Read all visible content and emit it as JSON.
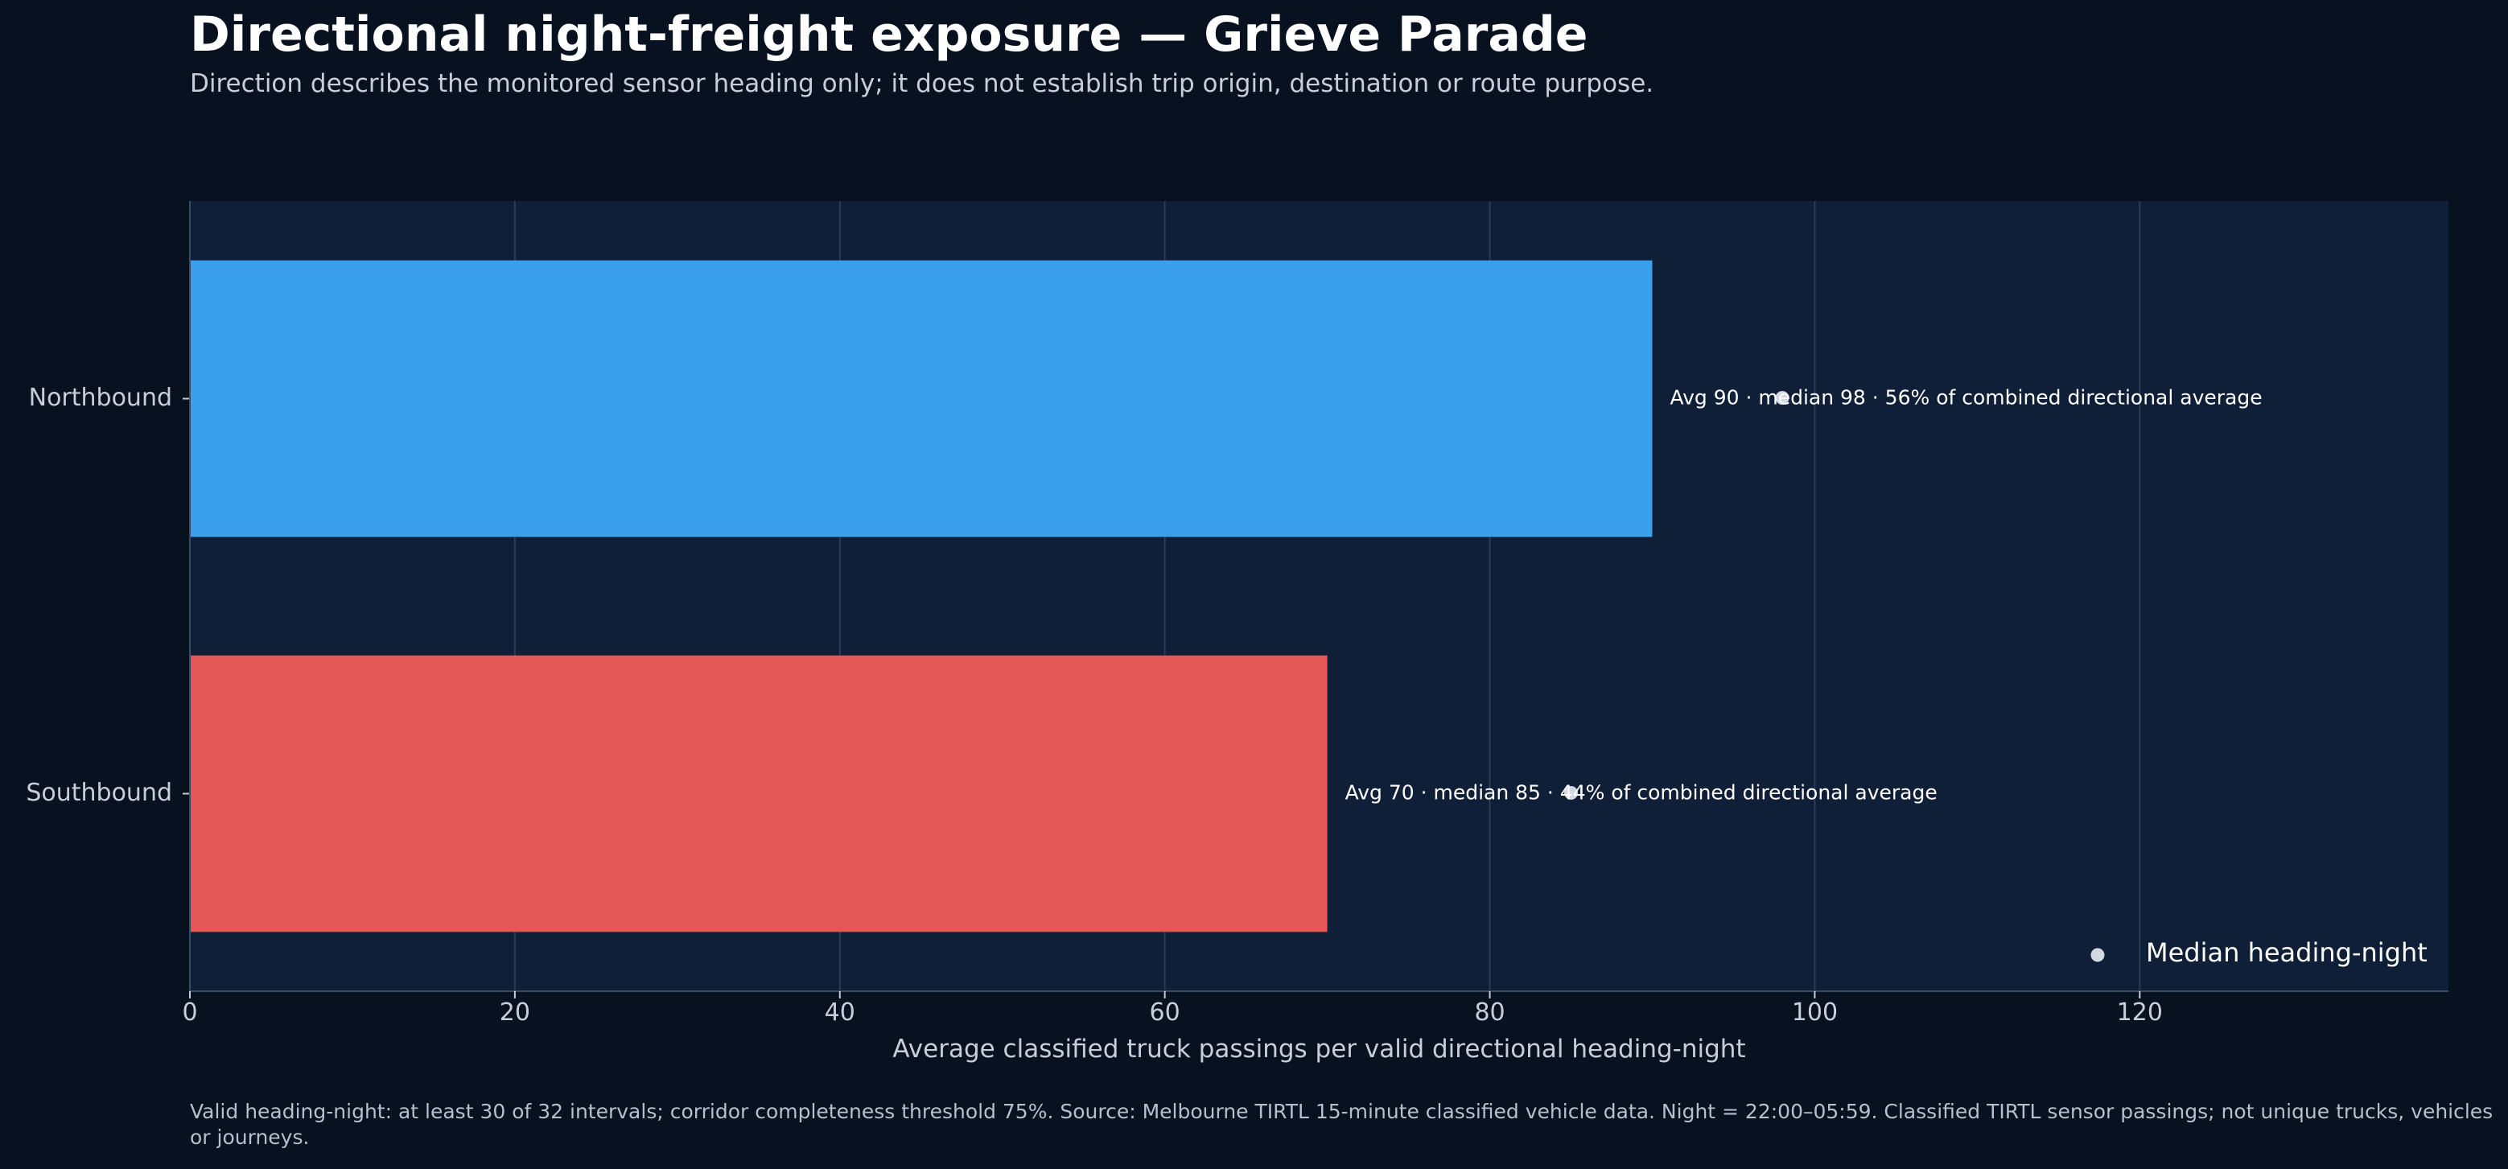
{
  "header": {
    "title": "Directional night-freight exposure — Grieve Parade",
    "subtitle": "Direction describes the monitored sensor heading only; it does not establish trip origin, destination or route purpose."
  },
  "footnote": "Valid heading-night: at least 30 of 32 intervals; corridor completeness threshold 75%. Source: Melbourne TIRTL 15-minute classified vehicle data. Night = 22:00–05:59. Classified TIRTL sensor passings; not unique trucks, vehicles or journeys.",
  "colors": {
    "background": "#08111f",
    "plot_background": "#101f38",
    "northbound": "#3a9fec",
    "southbound": "#e35757",
    "median_marker": "#d3d9e2"
  },
  "chart_data": {
    "type": "bar",
    "orientation": "horizontal",
    "categories": [
      "Northbound",
      "Southbound"
    ],
    "values": [
      90,
      70
    ],
    "medians": [
      98,
      85
    ],
    "bar_labels": [
      "Avg 90 · median 98 · 56% of combined directional average",
      "Avg 70 · median 85 · 44% of combined directional average"
    ],
    "xlabel": "Average classified truck passings per valid directional heading-night",
    "xlim": [
      0,
      139
    ],
    "xticks": [
      0,
      20,
      40,
      60,
      80,
      100,
      120
    ],
    "grid": true,
    "legend": {
      "position": "bottom-right",
      "entries": [
        "Median heading-night"
      ]
    }
  }
}
